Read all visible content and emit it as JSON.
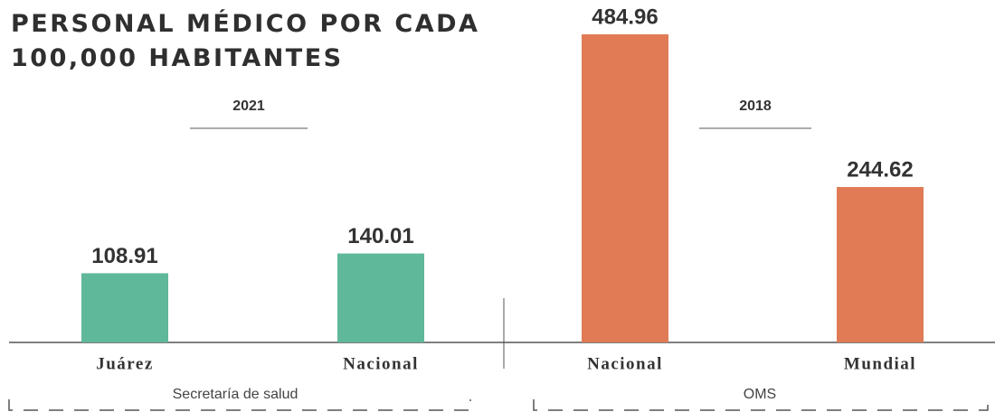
{
  "chart_data": {
    "type": "bar",
    "title": "PERSONAL MÉDICO POR CADA 100,000 HABITANTES",
    "categories": [
      "Juárez",
      "Nacional",
      "Nacional",
      "Mundial"
    ],
    "values": [
      108.91,
      140.01,
      484.96,
      244.62
    ],
    "colors": [
      "#5fb899",
      "#5fb899",
      "#e07b55",
      "#e07b55"
    ],
    "groups": [
      {
        "year": "2021",
        "source": "Secretaría de salud"
      },
      {
        "year": "2018",
        "source": "OMS"
      }
    ]
  }
}
